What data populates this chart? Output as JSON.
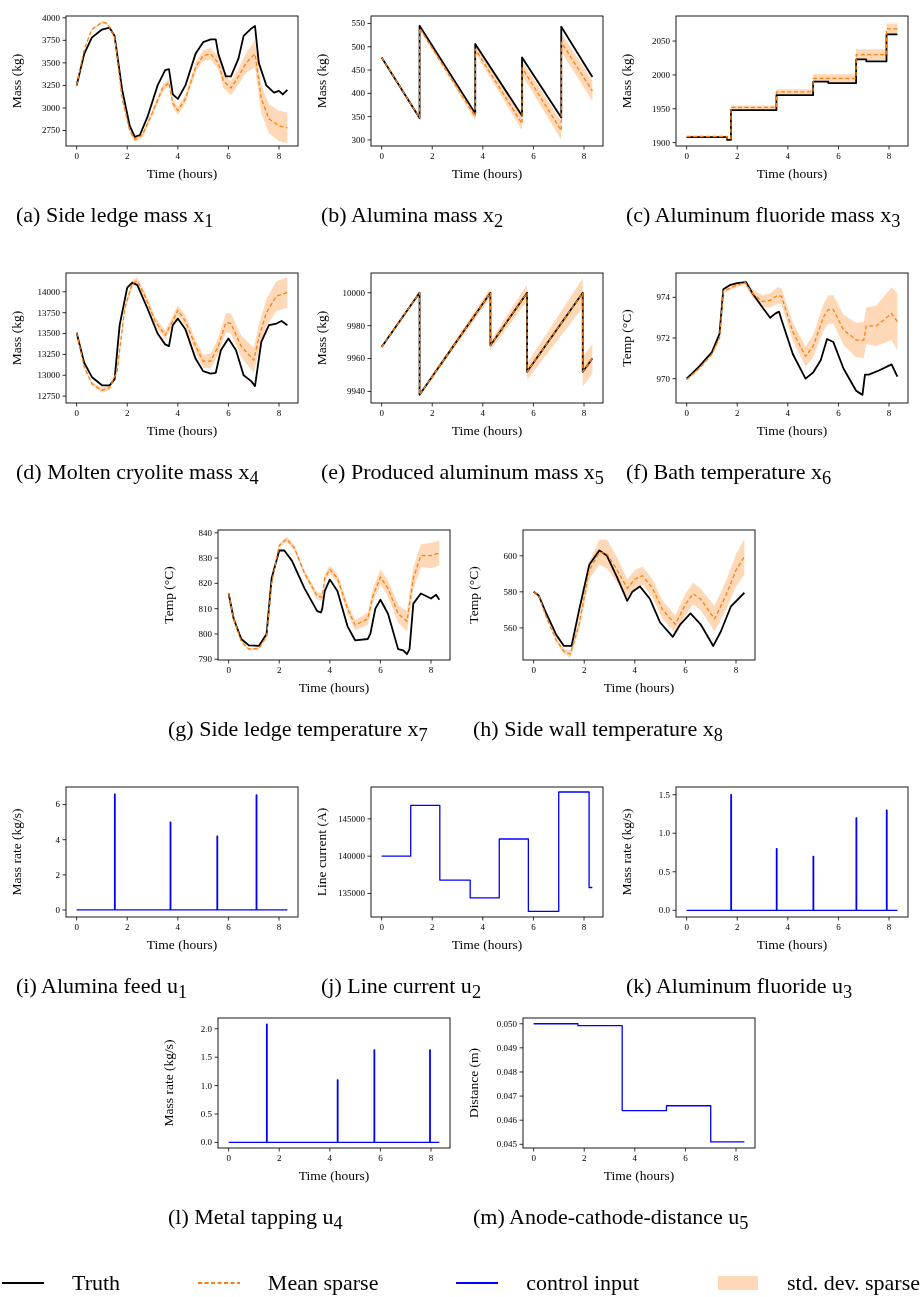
{
  "chart_data": [
    {
      "type": "line",
      "title": "(a) Side ledge mass x$_{1}$",
      "xlabel": "Time (hours)",
      "ylabel": "Mass (kg)",
      "xlim": [
        -0.42,
        8.75
      ],
      "xticks": [
        0,
        2,
        4,
        6,
        8
      ],
      "ylim": [
        2578,
        4020
      ],
      "yticks": [
        2750,
        3000,
        3250,
        3500,
        3750,
        4000
      ],
      "legend": "bottom",
      "annotations": [
        "std. dev. sparse"
      ],
      "series": [
        {
          "name": "Truth",
          "color": "#000000",
          "x": [
            0,
            0.3,
            0.6,
            1.0,
            1.3,
            1.5,
            1.8,
            2.1,
            2.3,
            2.5,
            2.8,
            3.2,
            3.5,
            3.65,
            3.8,
            4.0,
            4.3,
            4.7,
            5.0,
            5.3,
            5.5,
            5.6,
            5.9,
            6.1,
            6.4,
            6.6,
            6.9,
            7.05,
            7.2,
            7.5,
            7.8,
            8.0,
            8.15,
            8.33
          ],
          "values": [
            3250,
            3600,
            3780,
            3870,
            3890,
            3800,
            3200,
            2800,
            2680,
            2700,
            2900,
            3250,
            3420,
            3430,
            3150,
            3100,
            3250,
            3600,
            3730,
            3760,
            3760,
            3600,
            3350,
            3350,
            3550,
            3800,
            3880,
            3910,
            3500,
            3250,
            3170,
            3190,
            3150,
            3200
          ]
        },
        {
          "name": "Mean sparse",
          "color": "#ff7f0e",
          "line_style": "dashed",
          "x": [
            0,
            0.3,
            0.6,
            1.0,
            1.2,
            1.5,
            1.8,
            2.1,
            2.3,
            2.6,
            3.0,
            3.4,
            3.65,
            3.8,
            4.0,
            4.3,
            4.7,
            5.0,
            5.3,
            5.6,
            5.8,
            6.1,
            6.4,
            6.7,
            7.05,
            7.3,
            7.6,
            8.0,
            8.33
          ],
          "values": [
            3250,
            3650,
            3870,
            3950,
            3940,
            3800,
            3100,
            2750,
            2650,
            2700,
            2950,
            3220,
            3280,
            3050,
            2970,
            3100,
            3450,
            3580,
            3600,
            3500,
            3300,
            3220,
            3350,
            3500,
            3600,
            3100,
            2880,
            2800,
            2780
          ],
          "lower": [
            3250,
            3645,
            3860,
            3935,
            3925,
            3780,
            3075,
            2725,
            2625,
            2670,
            2915,
            3180,
            3240,
            3005,
            2925,
            3050,
            3395,
            3520,
            3535,
            3430,
            3220,
            3140,
            3260,
            3390,
            3450,
            2940,
            2720,
            2630,
            2610
          ],
          "upper": [
            3250,
            3655,
            3880,
            3965,
            3955,
            3820,
            3125,
            2775,
            2675,
            2730,
            2985,
            3260,
            3320,
            3095,
            3015,
            3150,
            3505,
            3640,
            3665,
            3570,
            3380,
            3300,
            3440,
            3610,
            3750,
            3260,
            3040,
            2970,
            2950
          ]
        }
      ]
    },
    {
      "type": "line",
      "title": "(b) Alumina mass x$_{2}$",
      "xlabel": "Time (hours)",
      "ylabel": "Mass (kg)",
      "xlim": [
        -0.42,
        8.75
      ],
      "xticks": [
        0,
        2,
        4,
        6,
        8
      ],
      "ylim": [
        287,
        566
      ],
      "yticks": [
        300,
        350,
        400,
        450,
        500,
        550
      ],
      "series": [
        {
          "color": "#000000",
          "x": [
            0,
            1.5,
            1.5,
            3.7,
            3.7,
            5.55,
            5.55,
            7.1,
            7.1,
            8.33
          ],
          "values": [
            477,
            347,
            545,
            357,
            506,
            352,
            477,
            348,
            543,
            435
          ]
        },
        {
          "color": "#ff7f0e",
          "line_style": "dashed",
          "x": [
            0,
            1.5,
            1.5,
            3.7,
            3.7,
            5.55,
            5.55,
            7.1,
            7.1,
            8.33
          ],
          "values": [
            477,
            347,
            540,
            350,
            495,
            335,
            455,
            320,
            510,
            405
          ],
          "lower": [
            477,
            344,
            537,
            342,
            487,
            320,
            440,
            300,
            490,
            383
          ],
          "upper": [
            477,
            350,
            543,
            358,
            503,
            350,
            470,
            340,
            530,
            427
          ]
        }
      ]
    },
    {
      "type": "line",
      "title": "(c) Aluminum fluoride mass x$_{3}$",
      "xlabel": "Time (hours)",
      "ylabel": "Mass (kg)",
      "xlim": [
        -0.42,
        8.75
      ],
      "xticks": [
        0,
        2,
        4,
        6,
        8
      ],
      "ylim": [
        1895,
        2087
      ],
      "yticks": [
        1900,
        1950,
        2000,
        2050
      ],
      "series": [
        {
          "color": "#000000",
          "x": [
            0,
            1.6,
            1.6,
            1.75,
            1.75,
            3.55,
            3.55,
            5.0,
            5.0,
            5.6,
            5.6,
            6.7,
            6.7,
            7.1,
            7.1,
            7.9,
            7.9,
            8.33
          ],
          "values": [
            1908,
            1908,
            1904,
            1904,
            1948,
            1948,
            1970,
            1970,
            1990,
            1990,
            1988,
            1988,
            2023,
            2023,
            2020,
            2020,
            2060,
            2060
          ]
        },
        {
          "color": "#ff7f0e",
          "line_style": "dashed",
          "x": [
            0,
            1.6,
            1.6,
            1.75,
            1.75,
            3.55,
            3.55,
            5.0,
            5.0,
            6.7,
            6.7,
            7.9,
            7.9,
            8.33
          ],
          "values": [
            1909,
            1909,
            1906,
            1906,
            1952,
            1952,
            1975,
            1975,
            1995,
            1995,
            2030,
            2030,
            2068,
            2068
          ],
          "lower": [
            1908,
            1908,
            1905,
            1905,
            1949,
            1949,
            1971,
            1971,
            1989,
            1989,
            2022,
            2022,
            2060,
            2060
          ],
          "upper": [
            1910,
            1910,
            1907,
            1907,
            1955,
            1955,
            1979,
            1979,
            2001,
            2001,
            2038,
            2038,
            2076,
            2076
          ]
        }
      ]
    },
    {
      "type": "line",
      "title": "(d) Molten cryolite mass x$_{4}$",
      "xlabel": "Time (hours)",
      "ylabel": "Mass (kg)",
      "xlim": [
        -0.42,
        8.75
      ],
      "xticks": [
        0,
        2,
        4,
        6,
        8
      ],
      "ylim": [
        12668,
        14225
      ],
      "yticks": [
        12750,
        13000,
        13250,
        13500,
        13750,
        14000
      ],
      "series": [
        {
          "color": "#000000",
          "x": [
            0,
            0.3,
            0.6,
            1.0,
            1.3,
            1.5,
            1.7,
            2.0,
            2.2,
            2.4,
            2.8,
            3.2,
            3.5,
            3.65,
            3.8,
            4.0,
            4.3,
            4.7,
            5.0,
            5.3,
            5.5,
            5.7,
            6.0,
            6.3,
            6.6,
            6.9,
            7.05,
            7.3,
            7.6,
            7.9,
            8.1,
            8.33
          ],
          "values": [
            13510,
            13150,
            12980,
            12880,
            12880,
            12950,
            13600,
            14050,
            14110,
            14080,
            13800,
            13500,
            13370,
            13350,
            13600,
            13680,
            13550,
            13200,
            13050,
            13020,
            13030,
            13300,
            13440,
            13300,
            13000,
            12930,
            12870,
            13400,
            13600,
            13620,
            13650,
            13600
          ]
        },
        {
          "color": "#ff7f0e",
          "line_style": "dashed",
          "x": [
            0,
            0.3,
            0.6,
            1.0,
            1.3,
            1.6,
            1.9,
            2.2,
            2.4,
            2.7,
            3.1,
            3.5,
            3.8,
            4.0,
            4.3,
            4.7,
            5.0,
            5.3,
            5.6,
            5.9,
            6.1,
            6.5,
            7.0,
            7.2,
            7.5,
            7.9,
            8.33
          ],
          "values": [
            13510,
            13100,
            12900,
            12820,
            12850,
            13050,
            13800,
            14100,
            14130,
            13950,
            13650,
            13480,
            13650,
            13780,
            13650,
            13350,
            13170,
            13170,
            13350,
            13630,
            13620,
            13350,
            13180,
            13450,
            13750,
            13950,
            13990
          ],
          "lower": [
            13510,
            13090,
            12880,
            12790,
            12820,
            13015,
            13765,
            14060,
            14090,
            13905,
            13600,
            13425,
            13590,
            13720,
            13585,
            13275,
            13090,
            13080,
            13250,
            13515,
            13500,
            13220,
            13030,
            13295,
            13585,
            13770,
            13810
          ],
          "upper": [
            13510,
            13110,
            12920,
            12850,
            12880,
            13085,
            13835,
            14140,
            14170,
            13995,
            13700,
            13535,
            13710,
            13840,
            13715,
            13425,
            13250,
            13260,
            13450,
            13745,
            13740,
            13480,
            13330,
            13605,
            13915,
            14130,
            14170
          ]
        }
      ]
    },
    {
      "type": "line",
      "title": "(e) Produced aluminum mass x$_{5}$",
      "xlabel": "Time (hours)",
      "ylabel": "Mass (kg)",
      "xlim": [
        -0.42,
        8.75
      ],
      "xticks": [
        0,
        2,
        4,
        6,
        8
      ],
      "ylim": [
        9933,
        10012
      ],
      "yticks": [
        9940,
        9960,
        9980,
        10000
      ],
      "series": [
        {
          "color": "#000000",
          "x": [
            0,
            1.5,
            1.5,
            4.3,
            4.3,
            5.75,
            5.75,
            7.95,
            7.95,
            8.33
          ],
          "values": [
            9967,
            10000,
            9938,
            10000,
            9968,
            10000,
            9952,
            10000,
            9952,
            9960
          ]
        },
        {
          "color": "#ff7f0e",
          "line_style": "dashed",
          "x": [
            0,
            1.5,
            1.5,
            4.3,
            4.3,
            5.75,
            5.75,
            7.95,
            7.95,
            8.33
          ],
          "values": [
            9967,
            10000,
            9938,
            10000,
            9968,
            10000,
            9952,
            10000,
            9952,
            9960
          ],
          "lower": [
            9966.5,
            9999,
            9937,
            9997,
            9965,
            9995,
            9947,
            9991,
            9943,
            9951
          ],
          "upper": [
            9967.5,
            10001,
            9939,
            10003,
            9971,
            10005,
            9957,
            10009,
            9961,
            9969
          ]
        }
      ]
    },
    {
      "type": "line",
      "title": "(f) Bath temperature x$_{6}$",
      "xlabel": "Time (hours)",
      "ylabel": "Temp (°C)",
      "xlim": [
        -0.42,
        8.75
      ],
      "xticks": [
        0,
        2,
        4,
        6,
        8
      ],
      "ylim": [
        968.8,
        975.2
      ],
      "yticks": [
        970,
        972,
        974
      ],
      "series": [
        {
          "color": "#000000",
          "x": [
            0,
            0.5,
            1.0,
            1.3,
            1.45,
            1.7,
            2.0,
            2.35,
            2.6,
            3.0,
            3.3,
            3.5,
            3.65,
            3.75,
            4.2,
            4.7,
            5.0,
            5.3,
            5.55,
            5.8,
            6.2,
            6.7,
            6.95,
            7.05,
            7.2,
            7.6,
            8.1,
            8.33
          ],
          "values": [
            970,
            970.6,
            971.3,
            972.2,
            974.4,
            974.6,
            974.7,
            974.75,
            974.2,
            973.5,
            973.0,
            973.2,
            973.3,
            972.9,
            971.2,
            970.0,
            970.3,
            970.9,
            971.95,
            971.8,
            970.5,
            969.4,
            969.2,
            970.2,
            970.2,
            970.4,
            970.7,
            970.1
          ]
        },
        {
          "color": "#ff7f0e",
          "line_style": "dashed",
          "x": [
            0,
            0.5,
            1.0,
            1.3,
            1.45,
            1.8,
            2.3,
            2.6,
            3.0,
            3.3,
            3.6,
            3.75,
            4.2,
            4.7,
            5.0,
            5.4,
            5.6,
            5.8,
            6.2,
            6.7,
            7.0,
            7.1,
            7.5,
            8.1,
            8.33
          ],
          "values": [
            969.95,
            970.5,
            971.2,
            972.0,
            974.3,
            974.5,
            974.75,
            974.2,
            973.8,
            973.85,
            974.1,
            974.05,
            972.3,
            971.1,
            971.6,
            973.0,
            973.4,
            973.4,
            972.4,
            971.9,
            971.9,
            972.6,
            972.6,
            973.2,
            972.8
          ],
          "lower": [
            969.95,
            970.45,
            971.15,
            971.9,
            974.2,
            974.4,
            974.65,
            974.0,
            973.5,
            973.5,
            973.7,
            973.65,
            971.85,
            970.6,
            971.05,
            972.35,
            972.7,
            972.7,
            971.65,
            971.05,
            971.0,
            971.7,
            971.6,
            971.9,
            971.4
          ],
          "upper": [
            969.95,
            970.55,
            971.25,
            972.1,
            974.4,
            974.6,
            974.85,
            974.4,
            974.1,
            974.2,
            974.5,
            974.45,
            972.75,
            971.6,
            972.15,
            973.65,
            974.1,
            974.1,
            973.15,
            972.75,
            972.8,
            973.5,
            973.6,
            974.5,
            974.2
          ]
        }
      ]
    },
    {
      "type": "line",
      "title": "(g) Side ledge temperature x$_{7}$",
      "xlabel": "Time (hours)",
      "ylabel": "Temp (°C)",
      "xlim": [
        -0.42,
        8.75
      ],
      "xticks": [
        0,
        2,
        4,
        6,
        8
      ],
      "ylim": [
        789.7,
        841.1
      ],
      "yticks": [
        790,
        800,
        810,
        820,
        830,
        840
      ],
      "series": [
        {
          "color": "#000000",
          "x": [
            0,
            0.2,
            0.5,
            0.8,
            1.2,
            1.5,
            1.7,
            2.0,
            2.2,
            2.5,
            3.0,
            3.5,
            3.65,
            3.7,
            3.8,
            4.0,
            4.3,
            4.7,
            5.0,
            5.5,
            5.6,
            5.8,
            6.0,
            6.3,
            6.7,
            6.9,
            7.05,
            7.15,
            7.3,
            7.6,
            8.0,
            8.2,
            8.33
          ],
          "values": [
            816,
            806,
            798,
            795.5,
            795.3,
            800,
            822,
            833,
            833,
            829,
            818,
            809,
            808.5,
            810,
            817,
            821.5,
            817,
            803,
            797.5,
            798,
            800,
            810,
            813.5,
            808,
            794,
            793.5,
            792,
            794,
            812,
            816,
            814,
            815.5,
            813.5
          ]
        },
        {
          "color": "#ff7f0e",
          "line_style": "dashed",
          "x": [
            0,
            0.2,
            0.5,
            0.8,
            1.2,
            1.5,
            1.7,
            2.0,
            2.3,
            2.6,
            3.0,
            3.5,
            3.7,
            3.8,
            4.0,
            4.3,
            4.7,
            5.0,
            5.5,
            5.7,
            6.0,
            6.3,
            6.7,
            7.05,
            7.3,
            7.6,
            8.0,
            8.33
          ],
          "values": [
            816,
            806,
            797,
            794,
            794.3,
            799,
            820,
            835,
            837.5,
            834,
            824,
            815,
            814.5,
            822,
            825.5,
            822,
            810,
            803.5,
            806,
            815,
            822.5,
            818,
            808,
            805,
            822,
            831,
            831,
            832
          ],
          "lower": [
            816,
            805.8,
            796.7,
            793.6,
            793.8,
            798.5,
            819.3,
            834.2,
            836.5,
            833,
            822.8,
            813.6,
            813,
            820.5,
            823.9,
            820.3,
            808.1,
            801.5,
            803.5,
            812.3,
            819.5,
            814.8,
            804.5,
            801,
            817.7,
            826.5,
            826,
            827
          ],
          "upper": [
            816,
            806.2,
            797.3,
            794.4,
            794.8,
            799.5,
            820.7,
            835.8,
            838.5,
            835,
            825.2,
            816.4,
            816,
            823.5,
            827.1,
            823.7,
            811.9,
            805.5,
            808.5,
            817.7,
            825.5,
            821.2,
            811.5,
            809,
            826.3,
            835.5,
            836,
            837
          ]
        }
      ]
    },
    {
      "type": "line",
      "title": "(h) Side wall temperature x$_{8}$",
      "xlabel": "Time (hours)",
      "ylabel": "Temp (°C)",
      "xlim": [
        -0.42,
        8.75
      ],
      "xticks": [
        0,
        2,
        4,
        6,
        8
      ],
      "ylim": [
        542.2,
        614.3
      ],
      "yticks": [
        560,
        580,
        600
      ],
      "series": [
        {
          "color": "#000000",
          "x": [
            0,
            0.2,
            0.5,
            0.9,
            1.2,
            1.5,
            1.8,
            2.2,
            2.6,
            2.9,
            3.3,
            3.7,
            3.9,
            4.2,
            4.6,
            5.0,
            5.5,
            5.8,
            6.2,
            6.6,
            7.1,
            7.4,
            7.8,
            8.33
          ],
          "values": [
            580,
            578,
            568,
            556,
            550,
            550,
            570,
            595,
            603,
            600,
            588,
            575,
            580,
            583,
            576,
            563,
            555,
            562,
            568,
            562,
            550,
            558,
            572,
            579.5
          ]
        },
        {
          "color": "#ff7f0e",
          "line_style": "dashed",
          "x": [
            0,
            0.2,
            0.5,
            0.9,
            1.2,
            1.45,
            1.8,
            2.2,
            2.6,
            2.9,
            3.3,
            3.7,
            4.0,
            4.3,
            4.7,
            5.1,
            5.6,
            6.0,
            6.3,
            6.6,
            7.15,
            7.6,
            8.0,
            8.33
          ],
          "values": [
            580,
            578,
            566,
            553,
            547,
            545.5,
            562,
            592,
            602,
            601,
            592,
            582,
            587,
            589,
            582,
            570,
            562,
            573,
            579,
            576,
            565,
            578,
            592,
            599.5
          ],
          "lower": [
            580,
            577.7,
            565.4,
            552,
            545.5,
            543.5,
            559,
            587,
            595,
            593,
            585,
            577,
            582,
            584,
            577,
            565,
            557,
            567,
            573,
            570,
            558,
            570,
            583,
            589.5
          ],
          "upper": [
            580,
            578.3,
            566.6,
            554,
            548.5,
            547.5,
            565,
            597,
            609,
            609,
            599,
            587,
            592,
            594,
            587,
            575,
            567,
            579,
            585,
            582,
            572,
            586,
            601,
            609.5
          ]
        }
      ]
    },
    {
      "type": "line",
      "title": "(i) Alumina feed u$_{1}$",
      "xlabel": "Time (hours)",
      "ylabel": "Mass rate (kg/s)",
      "xlim": [
        -0.42,
        8.75
      ],
      "xticks": [
        0,
        2,
        4,
        6,
        8
      ],
      "ylim": [
        -0.4,
        7.0
      ],
      "yticks": [
        0,
        2,
        4,
        6
      ],
      "series": [
        {
          "name": "control input",
          "color": "#0000ff",
          "x": [
            0,
            1.5,
            1.5,
            1.52,
            1.52,
            3.7,
            3.7,
            3.72,
            3.72,
            5.55,
            5.55,
            5.57,
            5.57,
            7.1,
            7.1,
            7.12,
            7.12,
            8.33
          ],
          "values": [
            0,
            0,
            6.6,
            6.6,
            0,
            0,
            5.0,
            5.0,
            0,
            0,
            4.2,
            4.2,
            0,
            0,
            6.55,
            6.55,
            0,
            0
          ]
        }
      ]
    },
    {
      "type": "line",
      "title": "(j) Line current u$_{2}$",
      "xlabel": "Time (hours)",
      "ylabel": "Line current (A)",
      "xlim": [
        -0.42,
        8.75
      ],
      "xticks": [
        0,
        2,
        4,
        6,
        8
      ],
      "ylim": [
        131850,
        149270
      ],
      "yticks": [
        135000,
        140000,
        145000
      ],
      "series": [
        {
          "color": "#0000ff",
          "x": [
            0,
            1.15,
            1.15,
            2.3,
            2.3,
            3.5,
            3.5,
            4.65,
            4.65,
            5.8,
            5.8,
            7.0,
            7.0,
            8.2,
            8.2,
            8.33
          ],
          "values": [
            140000,
            140000,
            146800,
            146800,
            136800,
            136800,
            134400,
            134400,
            142300,
            142300,
            132600,
            132600,
            148600,
            148600,
            135800,
            135800
          ]
        }
      ]
    },
    {
      "type": "line",
      "title": "(k) Aluminum fluoride u$_{3}$",
      "xlabel": "Time (hours)",
      "ylabel": "Mass rate (kg/s)",
      "xlim": [
        -0.42,
        8.75
      ],
      "xticks": [
        0,
        2,
        4,
        6,
        8
      ],
      "ylim": [
        -0.087,
        1.6
      ],
      "yticks": [
        {
          "value": 0,
          "label": "0.0"
        },
        0.5,
        {
          "value": 1,
          "label": "1.0"
        },
        1.5
      ],
      "series": [
        {
          "color": "#0000ff",
          "x": [
            0,
            1.75,
            1.75,
            1.77,
            1.77,
            3.55,
            3.55,
            3.57,
            3.57,
            5.0,
            5.0,
            5.02,
            5.02,
            6.7,
            6.7,
            6.72,
            6.72,
            7.9,
            7.9,
            7.92,
            7.92,
            8.33
          ],
          "values": [
            0,
            0,
            1.5,
            1.5,
            0,
            0,
            0.8,
            0.8,
            0,
            0,
            0.7,
            0.7,
            0,
            0,
            1.2,
            1.2,
            0,
            0,
            1.3,
            1.3,
            0,
            0
          ]
        }
      ]
    },
    {
      "type": "line",
      "title": "(l) Metal tapping u$_{4}$",
      "xlabel": "Time (hours)",
      "ylabel": "Mass rate (kg/s)",
      "xlim": [
        -0.42,
        8.75
      ],
      "xticks": [
        0,
        2,
        4,
        6,
        8
      ],
      "ylim": [
        -0.098,
        2.19
      ],
      "yticks": [
        {
          "value": 0,
          "label": "0.0"
        },
        0.5,
        {
          "value": 1,
          "label": "1.0"
        },
        1.5,
        {
          "value": 2,
          "label": "2.0"
        }
      ],
      "series": [
        {
          "color": "#0000ff",
          "x": [
            0,
            1.5,
            1.5,
            1.52,
            1.52,
            4.3,
            4.3,
            4.32,
            4.32,
            5.75,
            5.75,
            5.77,
            5.77,
            7.95,
            7.95,
            7.97,
            7.97,
            8.33
          ],
          "values": [
            0,
            0,
            2.08,
            2.08,
            0,
            0,
            1.1,
            1.1,
            0,
            0,
            1.63,
            1.63,
            0,
            0,
            1.63,
            1.63,
            0,
            0
          ]
        }
      ]
    },
    {
      "type": "line",
      "title": "(m) Anode-cathode-distance u$_{5}$",
      "xlabel": "Time (hours)",
      "ylabel": "Distance (m)",
      "xlim": [
        -0.42,
        8.75
      ],
      "xticks": [
        0,
        2,
        4,
        6,
        8
      ],
      "ylim": [
        0.044847,
        0.050238
      ],
      "yticks": [
        0.045,
        0.046,
        0.047,
        0.048,
        0.049,
        {
          "value": 0.05,
          "label": "0.050"
        }
      ],
      "series": [
        {
          "color": "#0000ff",
          "x": [
            0,
            1.75,
            1.75,
            3.5,
            3.5,
            5.25,
            5.25,
            7.0,
            7.0,
            8.33
          ],
          "values": [
            0.05,
            0.05,
            0.04992,
            0.04992,
            0.0464,
            0.0464,
            0.0466,
            0.0466,
            0.0451,
            0.0451
          ]
        }
      ]
    }
  ]
}
